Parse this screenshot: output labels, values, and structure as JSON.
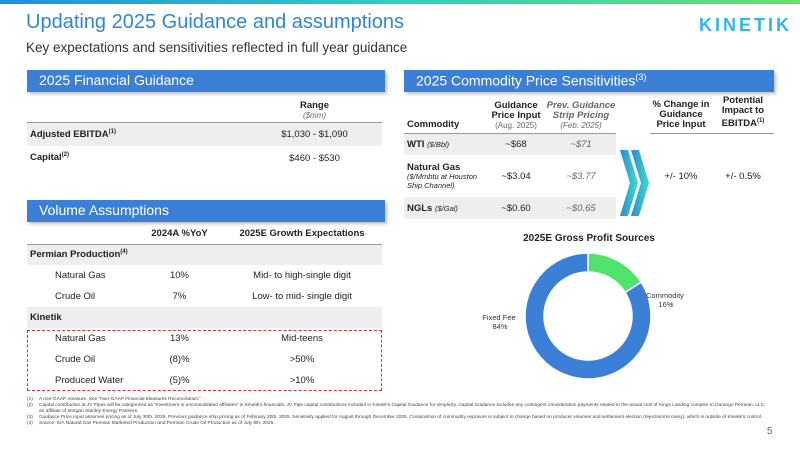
{
  "header": {
    "title": "Updating 2025 Guidance and assumptions",
    "subtitle": "Key expectations and sensitivities reflected in full year guidance",
    "logo": "KINETIK"
  },
  "financial": {
    "section_title": "2025 Financial Guidance",
    "col_range": "Range",
    "col_range_unit": "($mm)",
    "rows": [
      {
        "label": "Adjusted EBITDA",
        "note": "(1)",
        "value": "$1,030 - $1,090"
      },
      {
        "label": "Capital",
        "note": "(2)",
        "value": "$460 - $530"
      }
    ]
  },
  "volume": {
    "section_title": "Volume Assumptions",
    "col1": "2024A %YoY",
    "col2": "2025E Growth Expectations",
    "groups": [
      {
        "label": "Permian Production",
        "note": "(4)",
        "rows": [
          {
            "name": "Natural Gas",
            "yoy": "10%",
            "growth": "Mid- to high-single digit"
          },
          {
            "name": "Crude Oil",
            "yoy": "7%",
            "growth": "Low- to mid- single digit"
          }
        ]
      },
      {
        "label": "Kinetik",
        "note": "",
        "rows": [
          {
            "name": "Natural Gas",
            "yoy": "13%",
            "growth": "Mid-teens"
          },
          {
            "name": "Crude Oil",
            "yoy": "(8)%",
            "growth": ">50%"
          },
          {
            "name": "Produced Water",
            "yoy": "(5)%",
            "growth": ">10%"
          }
        ]
      }
    ]
  },
  "sensitivities": {
    "section_title": "2025 Commodity Price Sensitivities",
    "section_note": "(3)",
    "col_commodity": "Commodity",
    "col_input": "Guidance Price Input",
    "col_input_sub": "(Aug. 2025)",
    "col_strip": "Prev. Guidance Strip Pricing",
    "col_strip_sub": "(Feb. 2025)",
    "col_change": "% Change in Guidance Price Input",
    "col_impact": "Potential Impact to EBITDA",
    "col_impact_note": "(1)",
    "rows": [
      {
        "name": "WTI",
        "unit": "($/Bbl)",
        "input": "~$68",
        "strip": "~$71"
      },
      {
        "name": "Natural Gas",
        "unit": "($/Mmbtu at Houston Ship Channel)",
        "input": "~$3.04",
        "strip": "~$3.77"
      },
      {
        "name": "NGLs",
        "unit": "($/Gal)",
        "input": "~$0.60",
        "strip": "~$0.65"
      }
    ],
    "change": "+/- 10%",
    "impact": "+/- 0.5%"
  },
  "chart_data": {
    "type": "pie",
    "title": "2025E Gross Profit Sources",
    "slices": [
      {
        "label": "Commodity",
        "value": 16,
        "label_text": "16%",
        "color": "#4ee36a"
      },
      {
        "label": "Fixed Fee",
        "value": 84,
        "label_text": "84%",
        "color": "#3b7fd6"
      }
    ]
  },
  "footnotes": [
    {
      "num": "(1)",
      "text": "A non-GAAP measure. See “Non-GAAP Financial Measures Reconciliation.”"
    },
    {
      "num": "(2)",
      "text": "Capital contribution at JV Pipes will be categorized as “Investment in unconsolidated affiliates” in Kinetik’s financials. JV Pipe capital contributions included in Kinetik’s Capital Guidance for simplicity. Capital Guidance includes any contingent consideration payments related to the actual cost of Kings Landing complex to Durango Permian, LLC, an affiliate of Morgan Stanley Energy Partners."
    },
    {
      "num": "(3)",
      "text": "Guidance Price Input assumes pricing as of July 30th, 2025. Previous guidance strip pricing as of February 20th, 2025. Sensitivity applied for August through December 2025. Composition of commodity exposure is subject to change based on producer volumes and settlement election (rejection/recovery), which is outside of Kinetik’s control."
    },
    {
      "num": "(4)",
      "text": "Source: EIA Natural Gas Permian Marketed Production and Permian Crude Oil Production as of July 8th, 2025."
    }
  ],
  "page_number": "5"
}
